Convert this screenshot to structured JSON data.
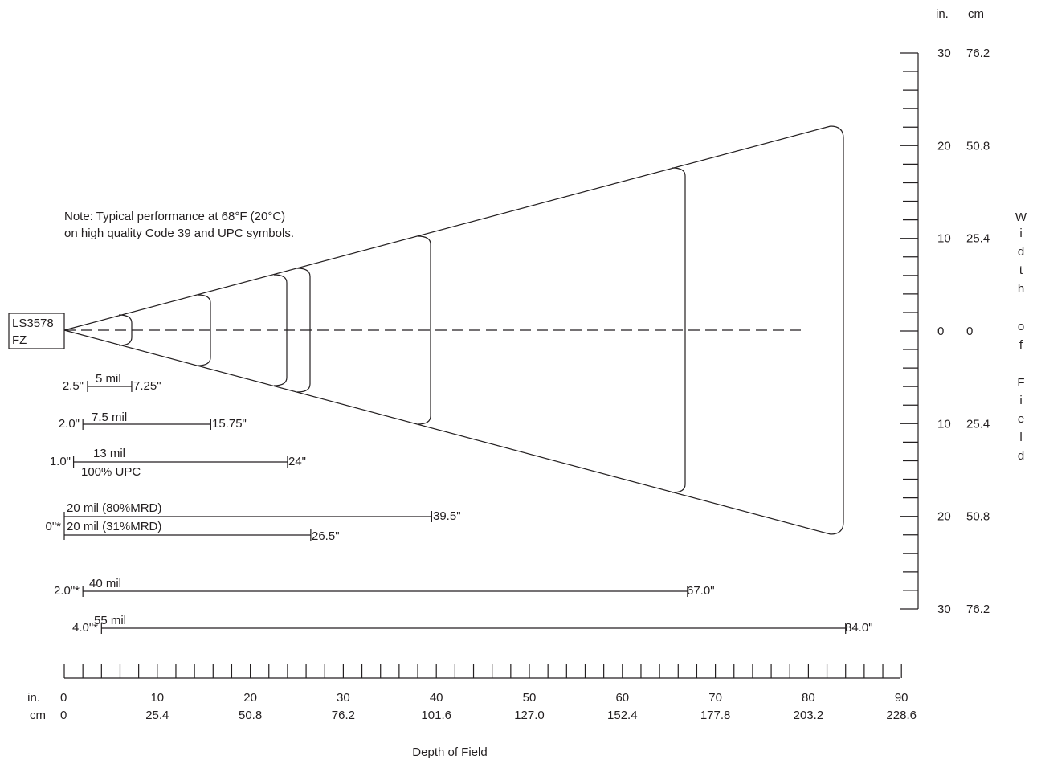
{
  "scanner": {
    "model": "LS3578",
    "suffix": "FZ"
  },
  "note": {
    "line1": "Note: Typical performance at 68°F (20°C)",
    "line2": "on high quality Code 39 and UPC symbols."
  },
  "depth_axis": {
    "title": "Depth of Field",
    "unit_in": "in.",
    "unit_cm": "cm",
    "ticks_in": [
      "0",
      "10",
      "20",
      "30",
      "40",
      "50",
      "60",
      "70",
      "80",
      "90"
    ],
    "ticks_cm": [
      "0",
      "25.4",
      "50.8",
      "76.2",
      "101.6",
      "127.0",
      "152.4",
      "177.8",
      "203.2",
      "228.6"
    ]
  },
  "width_axis": {
    "title_chars": [
      "W",
      "i",
      "d",
      "t",
      "h",
      "o",
      "f",
      "F",
      "i",
      "e",
      "l",
      "d"
    ],
    "unit_in": "in.",
    "unit_cm": "cm",
    "ticks": [
      {
        "in": "30",
        "cm": "76.2"
      },
      {
        "in": "20",
        "cm": "50.8"
      },
      {
        "in": "10",
        "cm": "25.4"
      },
      {
        "in": "0",
        "cm": "0"
      },
      {
        "in": "10",
        "cm": "25.4"
      },
      {
        "in": "20",
        "cm": "50.8"
      },
      {
        "in": "30",
        "cm": "76.2"
      }
    ]
  },
  "ranges": [
    {
      "label": "5 mil",
      "start_label": "2.5\"",
      "end_label": "7.25\"",
      "start_in": 2.5,
      "end_in": 7.25
    },
    {
      "label": "7.5 mil",
      "start_label": "2.0\"",
      "end_label": "15.75\"",
      "start_in": 2.0,
      "end_in": 15.75
    },
    {
      "label": "13 mil",
      "sublabel": "100% UPC",
      "start_label": "1.0\"",
      "end_label": "24\"",
      "start_in": 1.0,
      "end_in": 24
    },
    {
      "label": "20 mil (80%MRD)",
      "start_label": "0\"*",
      "end_label": "39.5\"",
      "start_in": 0,
      "end_in": 39.5
    },
    {
      "label": "20 mil (31%MRD)",
      "end_label": "26.5\"",
      "start_in": 0,
      "end_in": 26.5
    },
    {
      "label": "40 mil",
      "start_label": "2.0\"*",
      "end_label": "67.0\"",
      "start_in": 2.0,
      "end_in": 67.0
    },
    {
      "label": "55 mil",
      "start_label": "4.0\"*",
      "end_label": "84.0\"",
      "start_in": 4.0,
      "end_in": 84.0
    }
  ]
}
